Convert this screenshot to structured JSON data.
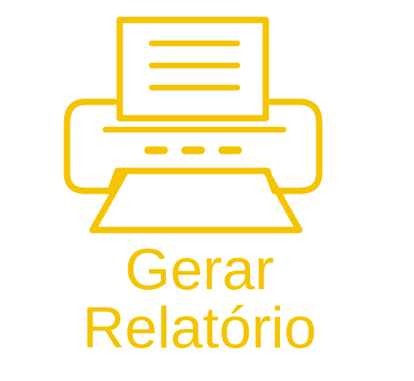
{
  "button": {
    "icon": "printer-icon",
    "label_line_1": "Gerar",
    "label_line_2": "Relatório"
  },
  "colors": {
    "accent": "#f5c400",
    "background": "#ffffff"
  }
}
